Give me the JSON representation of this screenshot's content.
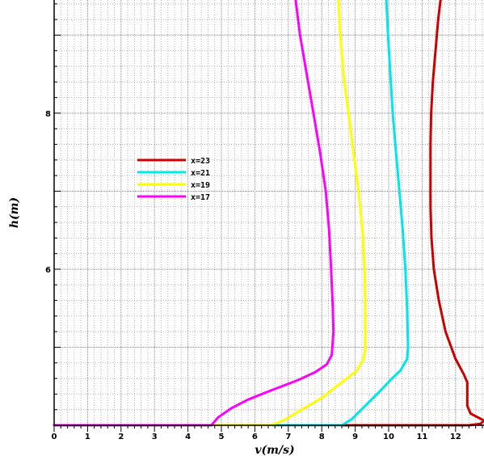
{
  "chart_data": {
    "type": "line",
    "title": "",
    "xlabel": "v(m/s)",
    "ylabel": "h(m)",
    "xlim": [
      0,
      12.85
    ],
    "ylim": [
      4.0,
      9.45
    ],
    "x_ticks": [
      0,
      1,
      2,
      3,
      4,
      5,
      6,
      7,
      8,
      9,
      10,
      11,
      12
    ],
    "y_ticks": [
      6,
      8
    ],
    "grid": true,
    "legend_position": "upper-left",
    "series": [
      {
        "name": "x=23",
        "color": "#cc0000",
        "points": [
          [
            0,
            4.0
          ],
          [
            12.4,
            4.0
          ],
          [
            12.75,
            4.02
          ],
          [
            12.85,
            4.06
          ],
          [
            12.45,
            4.15
          ],
          [
            12.35,
            4.25
          ],
          [
            12.35,
            4.4
          ],
          [
            12.35,
            4.55
          ],
          [
            12.25,
            4.65
          ],
          [
            12.0,
            4.85
          ],
          [
            11.7,
            5.2
          ],
          [
            11.5,
            5.6
          ],
          [
            11.35,
            6.0
          ],
          [
            11.28,
            6.4
          ],
          [
            11.25,
            6.8
          ],
          [
            11.25,
            7.2
          ],
          [
            11.25,
            7.6
          ],
          [
            11.27,
            8.0
          ],
          [
            11.32,
            8.4
          ],
          [
            11.4,
            8.8
          ],
          [
            11.48,
            9.2
          ],
          [
            11.55,
            9.45
          ]
        ]
      },
      {
        "name": "x=21",
        "color": "#00e5ee",
        "points": [
          [
            0,
            4.0
          ],
          [
            8.6,
            4.0
          ],
          [
            8.9,
            4.08
          ],
          [
            9.3,
            4.25
          ],
          [
            9.7,
            4.42
          ],
          [
            10.1,
            4.6
          ],
          [
            10.35,
            4.7
          ],
          [
            10.55,
            4.85
          ],
          [
            10.58,
            5.0
          ],
          [
            10.55,
            5.5
          ],
          [
            10.5,
            6.0
          ],
          [
            10.42,
            6.5
          ],
          [
            10.32,
            7.0
          ],
          [
            10.22,
            7.5
          ],
          [
            10.12,
            8.0
          ],
          [
            10.05,
            8.5
          ],
          [
            9.98,
            9.0
          ],
          [
            9.93,
            9.45
          ]
        ]
      },
      {
        "name": "x=19",
        "color": "#ffff00",
        "points": [
          [
            0,
            4.0
          ],
          [
            6.5,
            4.0
          ],
          [
            6.9,
            4.07
          ],
          [
            7.4,
            4.2
          ],
          [
            8.0,
            4.35
          ],
          [
            8.6,
            4.55
          ],
          [
            9.05,
            4.7
          ],
          [
            9.25,
            4.85
          ],
          [
            9.3,
            5.0
          ],
          [
            9.3,
            5.5
          ],
          [
            9.28,
            6.0
          ],
          [
            9.22,
            6.5
          ],
          [
            9.1,
            7.0
          ],
          [
            8.95,
            7.5
          ],
          [
            8.8,
            8.0
          ],
          [
            8.65,
            8.5
          ],
          [
            8.55,
            9.0
          ],
          [
            8.5,
            9.45
          ]
        ]
      },
      {
        "name": "x=17",
        "color": "#ff00ff",
        "points": [
          [
            0,
            4.0
          ],
          [
            4.7,
            4.0
          ],
          [
            4.9,
            4.1
          ],
          [
            5.3,
            4.22
          ],
          [
            5.8,
            4.33
          ],
          [
            6.5,
            4.45
          ],
          [
            7.3,
            4.58
          ],
          [
            7.8,
            4.68
          ],
          [
            8.15,
            4.78
          ],
          [
            8.3,
            4.9
          ],
          [
            8.35,
            5.2
          ],
          [
            8.33,
            5.5
          ],
          [
            8.28,
            6.0
          ],
          [
            8.22,
            6.5
          ],
          [
            8.12,
            7.0
          ],
          [
            7.95,
            7.5
          ],
          [
            7.75,
            8.0
          ],
          [
            7.55,
            8.5
          ],
          [
            7.35,
            9.0
          ],
          [
            7.22,
            9.45
          ]
        ]
      }
    ]
  }
}
